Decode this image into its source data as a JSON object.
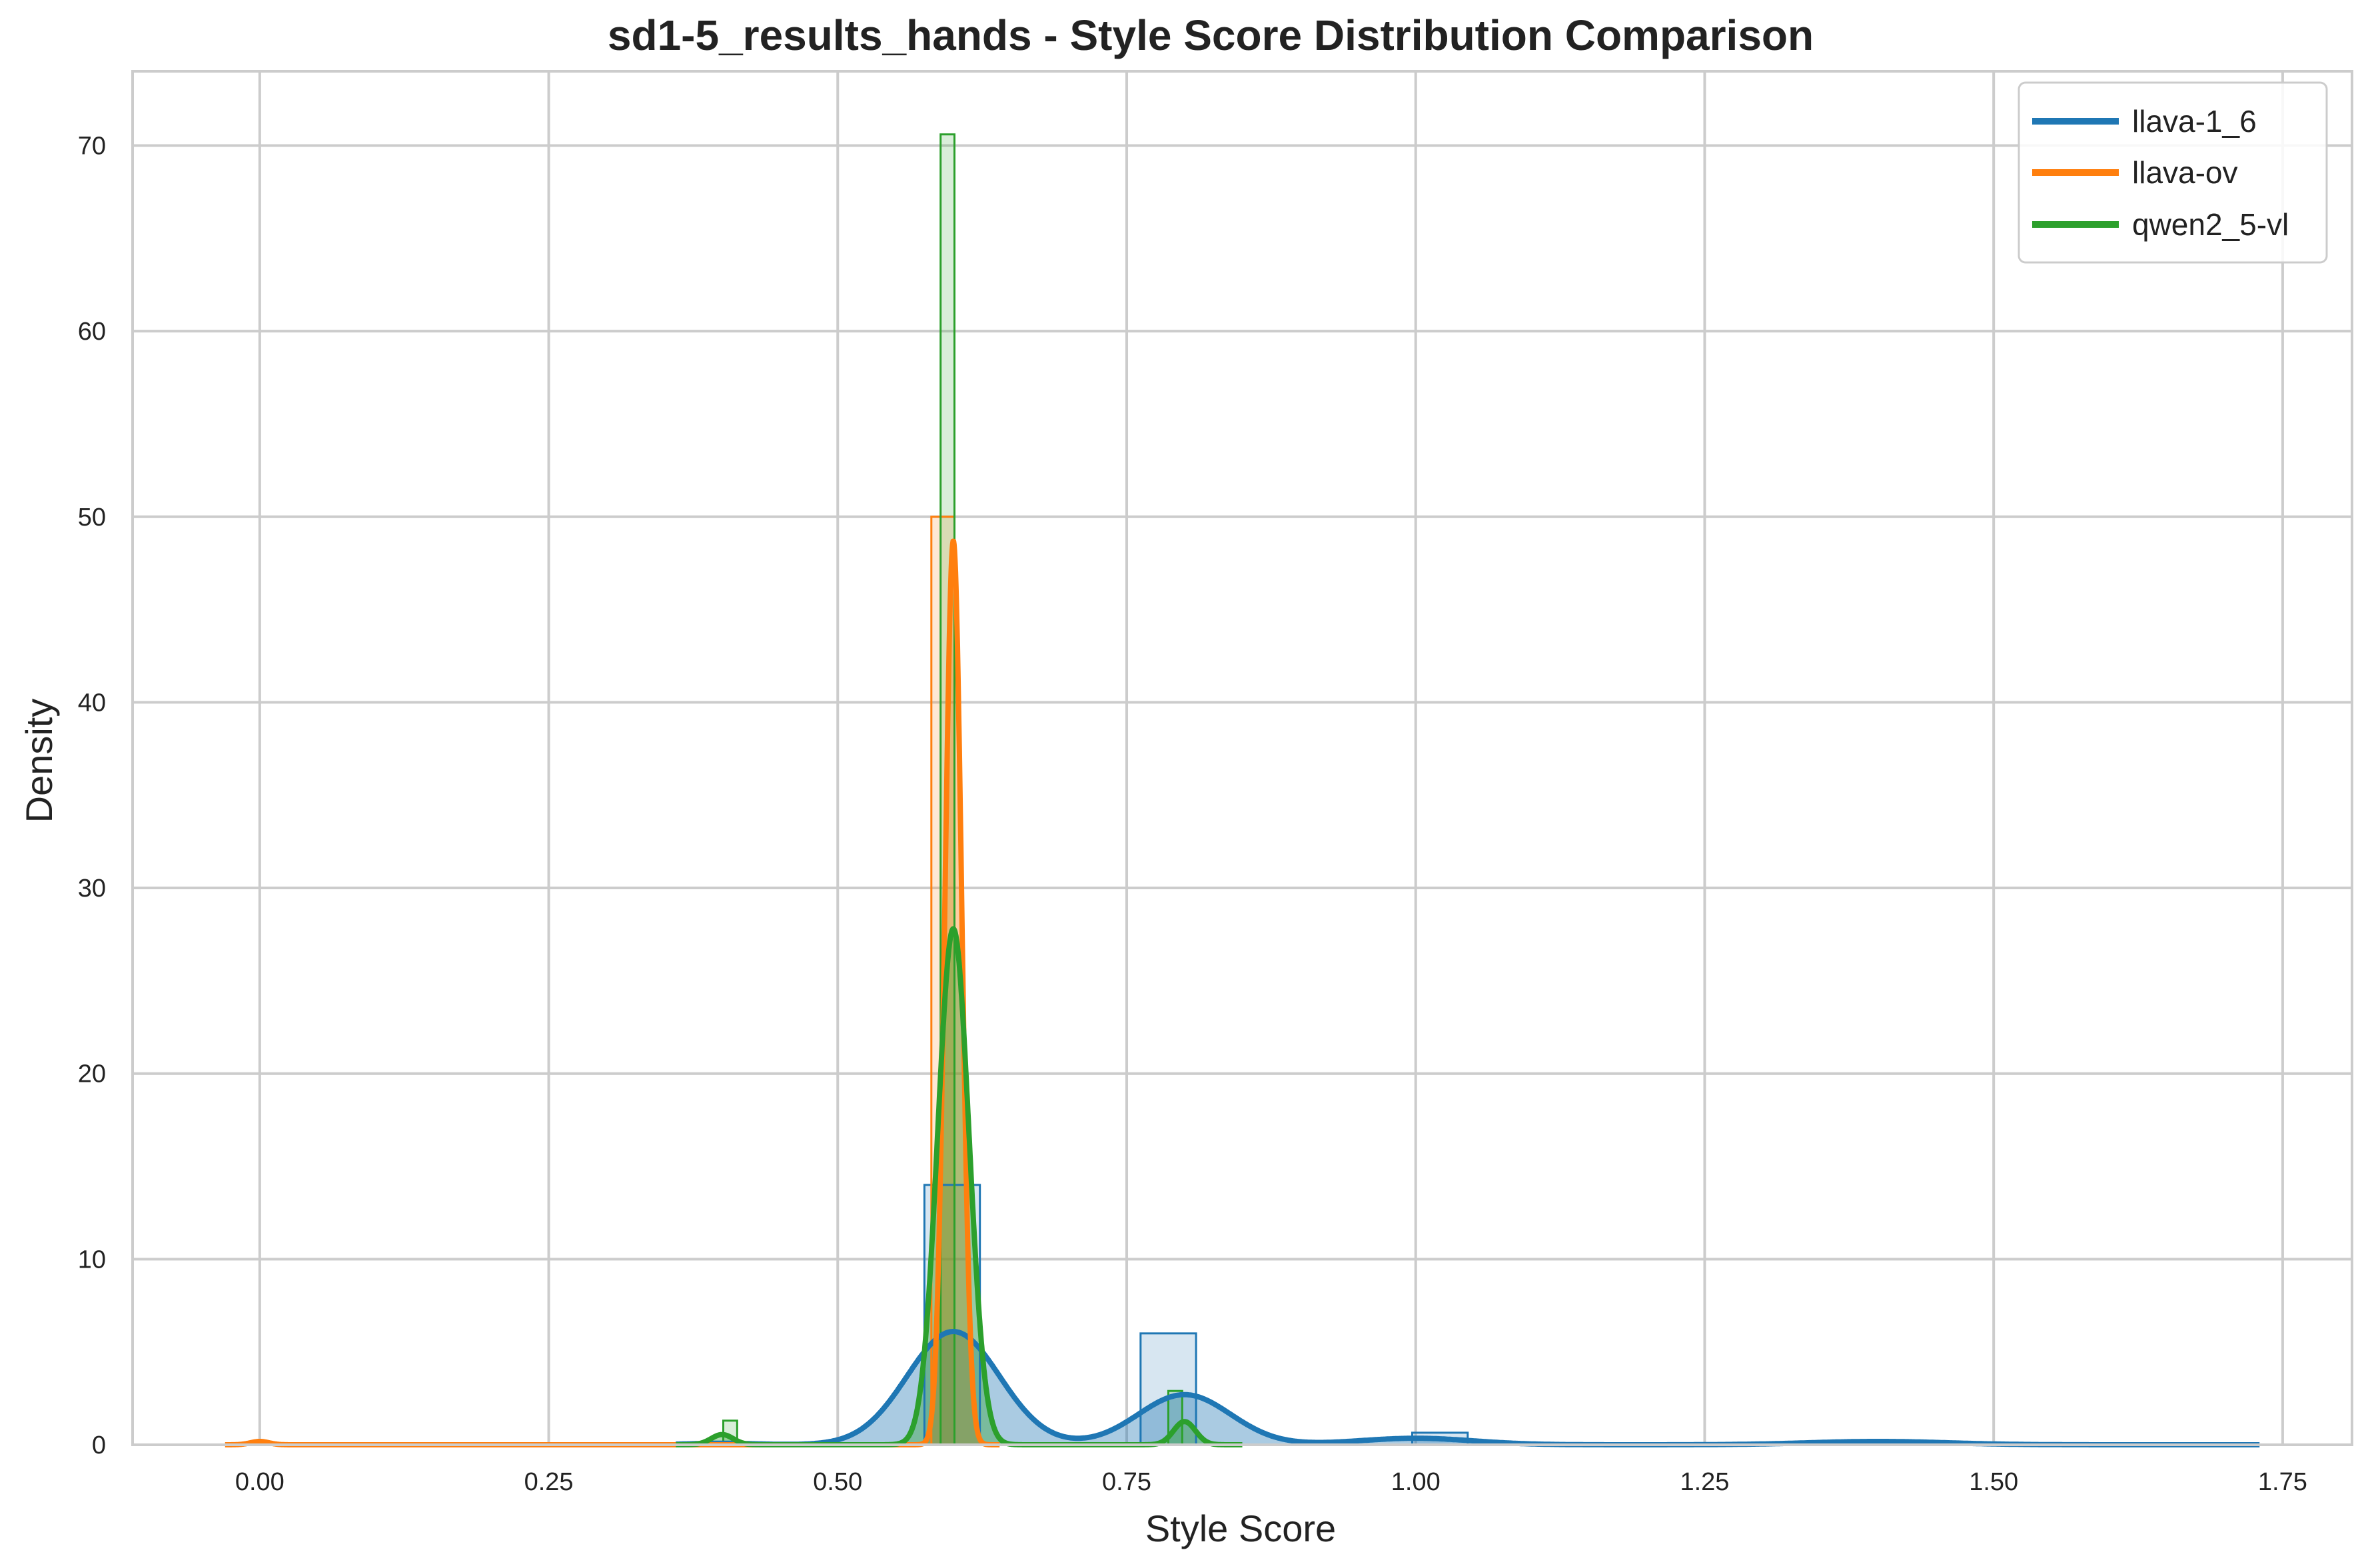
{
  "chart_data": {
    "type": "histogram_kde",
    "title": "sd1-5_results_hands - Style Score Distribution Comparison",
    "xlabel": "Style Score",
    "ylabel": "Density",
    "xlim": [
      -0.11,
      1.81
    ],
    "ylim": [
      0,
      74
    ],
    "xticks": [
      0.0,
      0.25,
      0.5,
      0.75,
      1.0,
      1.25,
      1.5,
      1.75
    ],
    "xtick_labels": [
      "0.00",
      "0.25",
      "0.50",
      "0.75",
      "1.00",
      "1.25",
      "1.50",
      "1.75"
    ],
    "yticks": [
      0,
      10,
      20,
      30,
      40,
      50,
      60,
      70
    ],
    "ytick_labels": [
      "0",
      "10",
      "20",
      "30",
      "40",
      "50",
      "60",
      "70"
    ],
    "grid": true,
    "legend_position": "top-right",
    "series": [
      {
        "name": "llava-1_6",
        "color": "#1f77b4",
        "histogram": [
          {
            "x0": 0.575,
            "x1": 0.623,
            "density": 14.0
          },
          {
            "x0": 0.762,
            "x1": 0.81,
            "density": 6.0
          },
          {
            "x0": 0.997,
            "x1": 1.045,
            "density": 0.65
          },
          {
            "x0": 1.37,
            "x1": 1.41,
            "density": 0.2
          }
        ],
        "kde": {
          "x_range": [
            0.36,
            1.73
          ],
          "components": [
            {
              "mu": 0.6,
              "sigma": 0.04,
              "height": 6.1
            },
            {
              "mu": 0.8,
              "sigma": 0.04,
              "height": 2.7
            },
            {
              "mu": 1.0,
              "sigma": 0.05,
              "height": 0.35
            },
            {
              "mu": 1.4,
              "sigma": 0.06,
              "height": 0.18
            },
            {
              "mu": 0.4,
              "sigma": 0.03,
              "height": 0.08
            }
          ]
        }
      },
      {
        "name": "llava-ov",
        "color": "#ff7f0e",
        "histogram": [
          {
            "x0": 0.581,
            "x1": 0.601,
            "density": 50.0
          }
        ],
        "kde": {
          "x_range": [
            -0.03,
            0.64
          ],
          "components": [
            {
              "mu": 0.6,
              "sigma": 0.0072,
              "height": 48.7
            },
            {
              "mu": 0.0,
              "sigma": 0.008,
              "height": 0.18
            }
          ]
        }
      },
      {
        "name": "qwen2_5-vl",
        "color": "#2ca02c",
        "histogram": [
          {
            "x0": 0.401,
            "x1": 0.413,
            "density": 1.3
          },
          {
            "x0": 0.589,
            "x1": 0.601,
            "density": 70.6
          },
          {
            "x0": 0.786,
            "x1": 0.798,
            "density": 2.9
          }
        ],
        "kde": {
          "x_range": [
            0.36,
            0.85
          ],
          "components": [
            {
              "mu": 0.6,
              "sigma": 0.0135,
              "height": 27.8
            },
            {
              "mu": 0.8,
              "sigma": 0.0095,
              "height": 1.25
            },
            {
              "mu": 0.4,
              "sigma": 0.0095,
              "height": 0.55
            }
          ]
        }
      }
    ]
  }
}
